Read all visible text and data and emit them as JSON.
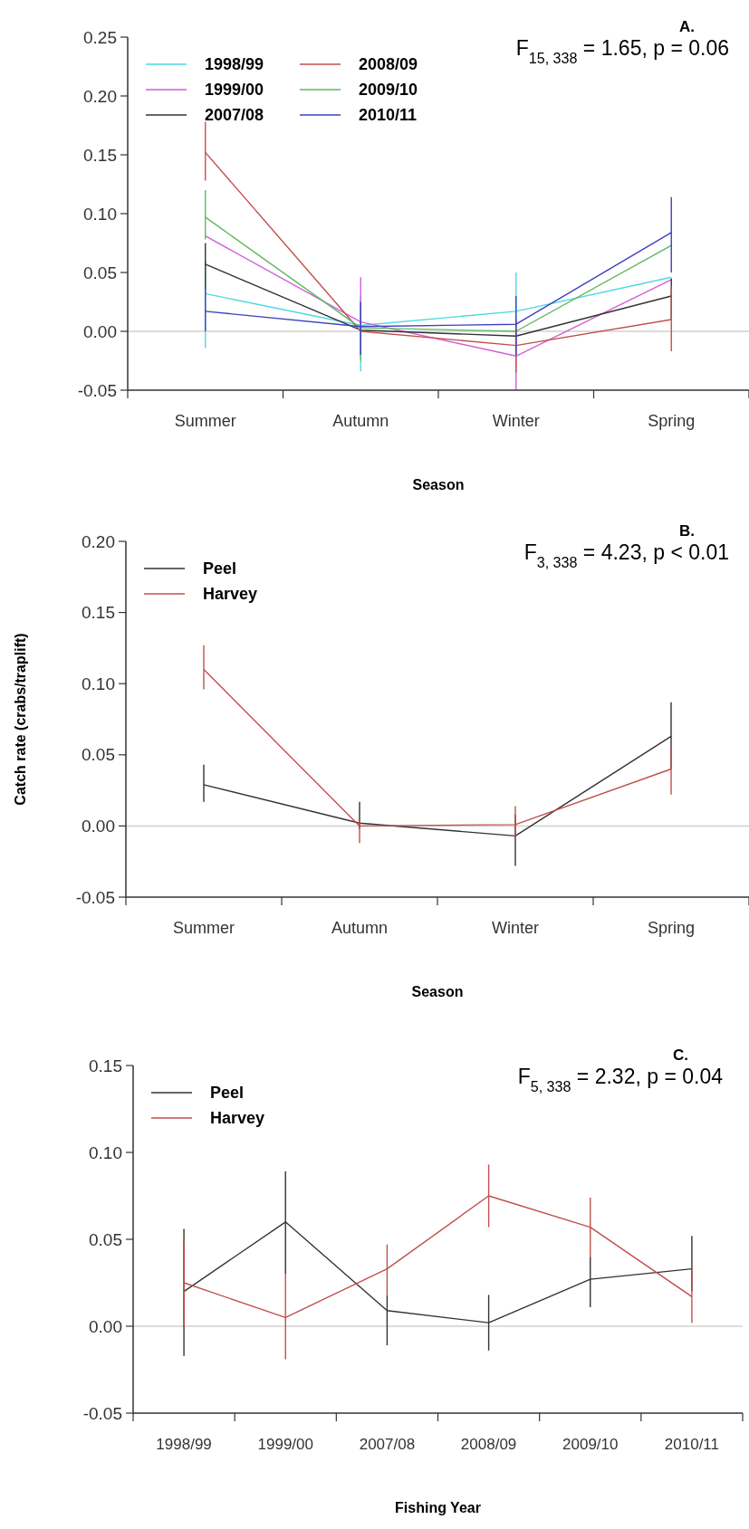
{
  "chart_data": [
    {
      "type": "line",
      "categories": [
        "Summer",
        "Autumn",
        "Winter",
        "Spring"
      ],
      "xlabel": "Season",
      "ylim": [
        -0.05,
        0.25
      ],
      "yticks": [
        {
          "value": -0.05,
          "label": "-0.05"
        },
        {
          "value": 0,
          "label": "0.00"
        },
        {
          "value": 0.05,
          "label": "0.05"
        },
        {
          "value": 0.1,
          "label": "0.10"
        },
        {
          "value": 0.15,
          "label": "0.15"
        },
        {
          "value": 0.2,
          "label": "0.20"
        },
        {
          "value": 0.25,
          "label": "0.25"
        }
      ],
      "legend": "top left",
      "marker": "none",
      "line_style": "solid",
      "grid": false,
      "ref_lines": [
        {
          "axis": "y",
          "value": 0,
          "color": "#d0d0d0"
        }
      ],
      "annotations": [
        "A.",
        "F$_{15, 338}$ = 1.65, p = 0.06"
      ],
      "series": [
        {
          "name": "1998/99",
          "color": "#4fd8e0",
          "values": [
            0.032,
            0.005,
            0.017,
            0.046
          ],
          "errors": [
            [
              -0.014,
              0.06
            ],
            [
              -0.034,
              0.03
            ],
            [
              -0.01,
              0.05
            ],
            null
          ]
        },
        {
          "name": "1999/00",
          "color": "#d35ed8",
          "values": [
            0.081,
            0.008,
            -0.021,
            0.044
          ],
          "errors": [
            null,
            [
              -0.02,
              0.046
            ],
            [
              -0.05,
              0.0
            ],
            null
          ]
        },
        {
          "name": "2007/08",
          "color": "#333333",
          "values": [
            0.057,
            0.001,
            -0.004,
            0.03
          ],
          "errors": [
            [
              0.035,
              0.075
            ],
            null,
            null,
            [
              0.01,
              0.045
            ]
          ]
        },
        {
          "name": "2008/09",
          "color": "#c0504d",
          "values": [
            0.152,
            0.0,
            -0.012,
            0.01
          ],
          "errors": [
            [
              0.128,
              0.178
            ],
            null,
            [
              -0.035,
              0.01
            ],
            [
              -0.017,
              0.038
            ]
          ]
        },
        {
          "name": "2009/10",
          "color": "#5cb85c",
          "values": [
            0.097,
            0.003,
            0.0,
            0.073
          ],
          "errors": [
            [
              0.078,
              0.12
            ],
            [
              -0.025,
              0.02
            ],
            null,
            null
          ]
        },
        {
          "name": "2010/11",
          "color": "#4040c0",
          "values": [
            0.017,
            0.004,
            0.006,
            0.084
          ],
          "errors": [
            [
              0.0,
              0.035
            ],
            [
              -0.02,
              0.025
            ],
            [
              -0.02,
              0.03
            ],
            [
              0.05,
              0.114
            ]
          ]
        }
      ]
    },
    {
      "type": "line",
      "categories": [
        "Summer",
        "Autumn",
        "Winter",
        "Spring"
      ],
      "xlabel": "Season",
      "ylabel": "Catch rate (crabs/traplift)",
      "ylim": [
        -0.05,
        0.2
      ],
      "yticks": [
        {
          "value": -0.05,
          "label": "-0.05"
        },
        {
          "value": 0,
          "label": "0.00"
        },
        {
          "value": 0.05,
          "label": "0.05"
        },
        {
          "value": 0.1,
          "label": "0.10"
        },
        {
          "value": 0.15,
          "label": "0.15"
        },
        {
          "value": 0.2,
          "label": "0.20"
        }
      ],
      "legend": "top left",
      "marker": "none",
      "line_style": "solid",
      "grid": false,
      "ref_lines": [
        {
          "axis": "y",
          "value": 0,
          "color": "#d0d0d0"
        }
      ],
      "annotations": [
        "B.",
        "F$_{3, 338}$ = 4.23, p < 0.01"
      ],
      "series": [
        {
          "name": "Peel",
          "color": "#333333",
          "values": [
            0.029,
            0.002,
            -0.007,
            0.063
          ],
          "errors": [
            [
              0.017,
              0.043
            ],
            [
              -0.002,
              0.017
            ],
            [
              -0.028,
              0.008
            ],
            [
              0.04,
              0.087
            ]
          ]
        },
        {
          "name": "Harvey",
          "color": "#c0504d",
          "values": [
            0.11,
            0.0,
            0.001,
            0.04
          ],
          "errors": [
            [
              0.096,
              0.127
            ],
            [
              -0.012,
              0.005
            ],
            [
              -0.01,
              0.014
            ],
            [
              0.022,
              0.055
            ]
          ]
        }
      ]
    },
    {
      "type": "line",
      "categories": [
        "1998/99",
        "1999/00",
        "2007/08",
        "2008/09",
        "2009/10",
        "2010/11"
      ],
      "xlabel": "Fishing Year",
      "ylim": [
        -0.05,
        0.15
      ],
      "yticks": [
        {
          "value": -0.05,
          "label": "-0.05"
        },
        {
          "value": 0,
          "label": "0.00"
        },
        {
          "value": 0.05,
          "label": "0.05"
        },
        {
          "value": 0.1,
          "label": "0.10"
        },
        {
          "value": 0.15,
          "label": "0.15"
        }
      ],
      "legend": "top left",
      "marker": "none",
      "line_style": "solid",
      "grid": false,
      "ref_lines": [
        {
          "axis": "y",
          "value": 0,
          "color": "#d0d0d0"
        }
      ],
      "annotations": [
        "C.",
        "F$_{5, 338}$ = 2.32, p = 0.04"
      ],
      "series": [
        {
          "name": "Peel",
          "color": "#333333",
          "values": [
            0.02,
            0.06,
            0.009,
            0.002,
            0.027,
            0.033
          ],
          "errors": [
            [
              -0.017,
              0.056
            ],
            [
              0.03,
              0.089
            ],
            [
              -0.011,
              0.018
            ],
            [
              -0.014,
              0.018
            ],
            [
              0.011,
              0.04
            ],
            [
              0.02,
              0.052
            ]
          ]
        },
        {
          "name": "Harvey",
          "color": "#c0504d",
          "values": [
            0.025,
            0.005,
            0.033,
            0.075,
            0.057,
            0.017
          ],
          "errors": [
            [
              0.0,
              0.05
            ],
            [
              -0.019,
              0.03
            ],
            [
              0.018,
              0.047
            ],
            [
              0.057,
              0.093
            ],
            [
              0.04,
              0.074
            ],
            [
              0.002,
              0.033
            ]
          ]
        }
      ]
    }
  ]
}
